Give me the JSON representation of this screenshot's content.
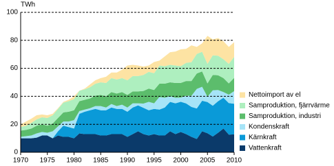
{
  "chart_data": {
    "type": "stacked-area",
    "y_label": "TWh",
    "x": [
      1970,
      1971,
      1972,
      1973,
      1974,
      1975,
      1976,
      1977,
      1978,
      1979,
      1980,
      1981,
      1982,
      1983,
      1984,
      1985,
      1986,
      1987,
      1988,
      1989,
      1990,
      1991,
      1992,
      1993,
      1994,
      1995,
      1996,
      1997,
      1998,
      1999,
      2000,
      2001,
      2002,
      2003,
      2004,
      2005,
      2006,
      2007,
      2008,
      2009,
      2010
    ],
    "xlim": [
      1970,
      2010
    ],
    "xticks": [
      1970,
      1975,
      1980,
      1985,
      1990,
      1995,
      2000,
      2005,
      2010
    ],
    "ylim": [
      0,
      100
    ],
    "yticks": [
      0,
      20,
      40,
      60,
      80,
      100
    ],
    "grid": true,
    "legend": "right",
    "series": [
      {
        "name": "Vattenkraft",
        "color": "#0b3a6a",
        "values": [
          10,
          10,
          10,
          10.5,
          12,
          12,
          10,
          12,
          11,
          11,
          10,
          13.5,
          13,
          13,
          13,
          12,
          12,
          13,
          13,
          13,
          11,
          13,
          15,
          13,
          12,
          13,
          12,
          12,
          15,
          13,
          14.5,
          13,
          11,
          9.5,
          15,
          13.6,
          11.3,
          14,
          17,
          12.6,
          12.8
        ]
      },
      {
        "name": "Kärnkraft",
        "color": "#0a9ad8",
        "values": [
          0,
          0,
          0,
          0,
          0,
          0,
          0,
          3,
          8,
          7,
          7,
          14,
          16,
          17,
          18,
          18,
          18,
          19,
          18,
          18,
          18,
          19,
          18.5,
          18.8,
          18,
          18,
          18.5,
          20,
          21,
          22,
          21.6,
          21.9,
          21.4,
          21.8,
          21.8,
          22.3,
          22,
          22.5,
          22,
          22.6,
          21.9
        ]
      },
      {
        "name": "Kondenskraft",
        "color": "#a6e4f7",
        "values": [
          1,
          1.5,
          2,
          3,
          2.5,
          2,
          5,
          3.5,
          3,
          4,
          6,
          2,
          1.5,
          1.5,
          2,
          3,
          2,
          2.5,
          2,
          3,
          3,
          3,
          1.5,
          3,
          6,
          4,
          9,
          7,
          4,
          4,
          3,
          5.5,
          8,
          14,
          10,
          3.8,
          11,
          8,
          4,
          6,
          9
        ]
      },
      {
        "name": "Samproduktion, industri",
        "color": "#5cbd6c",
        "values": [
          4.5,
          4.5,
          5,
          5.5,
          5.5,
          5,
          5.5,
          6,
          6.5,
          7,
          7,
          7,
          7,
          7,
          7.5,
          8,
          8,
          8.5,
          9,
          9,
          9,
          8.5,
          8.5,
          9,
          9.5,
          9.5,
          9.5,
          10,
          10,
          10.5,
          10.5,
          10.5,
          10.5,
          11,
          11,
          9.5,
          11,
          10.5,
          10,
          8,
          9.5
        ]
      },
      {
        "name": "Samproduktion, fjärrvärme",
        "color": "#aeefbf",
        "values": [
          2.5,
          3,
          4,
          4.5,
          5,
          5.5,
          6,
          6.5,
          7,
          7.5,
          8,
          7.5,
          7.5,
          8,
          8.5,
          9,
          9.5,
          10,
          10,
          10,
          10.5,
          11,
          11,
          11.5,
          12,
          12,
          13,
          12.5,
          12.5,
          12.5,
          12,
          13,
          13.5,
          14,
          14,
          14,
          14,
          14,
          13.5,
          14,
          15
        ]
      },
      {
        "name": "Nettoimport av el",
        "color": "#fde3a3",
        "values": [
          2,
          3,
          3,
          3,
          2,
          2,
          1,
          0.5,
          0.5,
          1,
          2,
          0,
          0.5,
          2,
          2.5,
          3,
          4.5,
          4,
          5,
          6,
          10.5,
          8,
          7.5,
          6,
          4.5,
          8,
          3.5,
          7,
          9,
          10,
          12,
          10,
          12,
          5,
          6,
          20,
          11.4,
          12.6,
          12.8,
          12.1,
          10.5
        ]
      }
    ]
  }
}
